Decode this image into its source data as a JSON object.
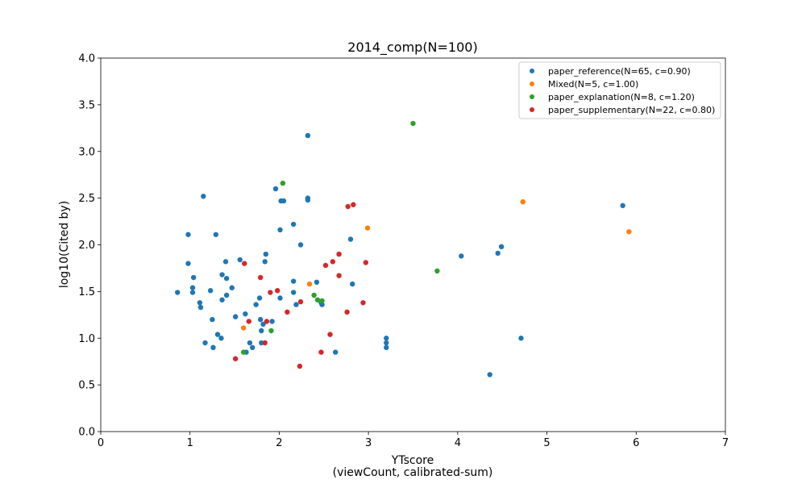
{
  "chart_data": {
    "type": "scatter",
    "title": "2014_comp(N=100)",
    "xlabel_line1": "YTscore",
    "xlabel_line2": "(viewCount, calibrated-sum)",
    "ylabel": "log10(Cited by)",
    "xlim": [
      0,
      7
    ],
    "ylim": [
      0,
      4
    ],
    "xticks": [
      0,
      1,
      2,
      3,
      4,
      5,
      6,
      7
    ],
    "yticks": [
      0.0,
      0.5,
      1.0,
      1.5,
      2.0,
      2.5,
      3.0,
      3.5,
      4.0
    ],
    "legend_position": "upper right",
    "series": [
      {
        "name": "paper_reference(N=65, c=0.90)",
        "color": "#1f77b4",
        "points": [
          [
            0.86,
            1.49
          ],
          [
            0.98,
            2.11
          ],
          [
            0.98,
            1.8
          ],
          [
            1.03,
            1.54
          ],
          [
            1.03,
            1.49
          ],
          [
            1.04,
            1.65
          ],
          [
            1.11,
            1.38
          ],
          [
            1.12,
            1.33
          ],
          [
            1.15,
            2.52
          ],
          [
            1.17,
            0.95
          ],
          [
            1.23,
            1.51
          ],
          [
            1.25,
            1.2
          ],
          [
            1.26,
            0.9
          ],
          [
            1.29,
            2.11
          ],
          [
            1.31,
            1.04
          ],
          [
            1.35,
            1.0
          ],
          [
            1.36,
            1.68
          ],
          [
            1.36,
            1.41
          ],
          [
            1.4,
            1.82
          ],
          [
            1.41,
            1.64
          ],
          [
            1.41,
            1.46
          ],
          [
            1.47,
            1.54
          ],
          [
            1.51,
            1.23
          ],
          [
            1.56,
            1.84
          ],
          [
            1.62,
            1.26
          ],
          [
            1.63,
            0.85
          ],
          [
            1.67,
            0.95
          ],
          [
            1.7,
            0.9
          ],
          [
            1.74,
            1.36
          ],
          [
            1.78,
            1.43
          ],
          [
            1.79,
            1.2
          ],
          [
            1.8,
            1.08
          ],
          [
            1.8,
            0.95
          ],
          [
            1.82,
            1.15
          ],
          [
            1.84,
            1.82
          ],
          [
            1.85,
            1.9
          ],
          [
            1.92,
            1.18
          ],
          [
            1.96,
            2.6
          ],
          [
            2.01,
            2.16
          ],
          [
            2.02,
            2.47
          ],
          [
            2.05,
            2.47
          ],
          [
            2.01,
            1.43
          ],
          [
            2.16,
            2.22
          ],
          [
            2.16,
            1.61
          ],
          [
            2.16,
            1.49
          ],
          [
            2.19,
            1.36
          ],
          [
            2.24,
            2.0
          ],
          [
            2.32,
            3.17
          ],
          [
            2.32,
            2.5
          ],
          [
            2.32,
            2.48
          ],
          [
            2.42,
            1.6
          ],
          [
            2.48,
            1.36
          ],
          [
            2.63,
            0.85
          ],
          [
            2.8,
            2.06
          ],
          [
            2.82,
            1.58
          ],
          [
            3.2,
            1.0
          ],
          [
            3.2,
            0.95
          ],
          [
            3.2,
            0.9
          ],
          [
            4.04,
            1.88
          ],
          [
            4.36,
            0.61
          ],
          [
            4.45,
            1.91
          ],
          [
            4.49,
            1.98
          ],
          [
            4.71,
            1.0
          ],
          [
            5.85,
            2.42
          ],
          [
            2.47,
            1.38
          ]
        ]
      },
      {
        "name": "Mixed(N=5, c=1.00)",
        "color": "#ff7f0e",
        "points": [
          [
            1.6,
            1.11
          ],
          [
            2.34,
            1.58
          ],
          [
            2.99,
            2.18
          ],
          [
            4.73,
            2.46
          ],
          [
            5.92,
            2.14
          ]
        ]
      },
      {
        "name": "paper_explanation(N=8, c=1.20)",
        "color": "#2ca02c",
        "points": [
          [
            1.6,
            0.85
          ],
          [
            1.91,
            1.08
          ],
          [
            2.04,
            2.66
          ],
          [
            2.39,
            1.46
          ],
          [
            2.43,
            1.41
          ],
          [
            2.48,
            1.4
          ],
          [
            3.5,
            3.3
          ],
          [
            3.77,
            1.72
          ]
        ]
      },
      {
        "name": "paper_supplementary(N=22, c=0.80)",
        "color": "#d62728",
        "points": [
          [
            1.51,
            0.78
          ],
          [
            1.61,
            1.8
          ],
          [
            1.66,
            1.18
          ],
          [
            1.79,
            1.65
          ],
          [
            1.84,
            0.95
          ],
          [
            1.86,
            1.18
          ],
          [
            1.9,
            1.49
          ],
          [
            1.98,
            1.51
          ],
          [
            2.09,
            1.28
          ],
          [
            2.23,
            0.7
          ],
          [
            2.24,
            1.39
          ],
          [
            2.47,
            0.85
          ],
          [
            2.52,
            1.78
          ],
          [
            2.57,
            1.04
          ],
          [
            2.6,
            1.82
          ],
          [
            2.67,
            1.9
          ],
          [
            2.67,
            1.67
          ],
          [
            2.76,
            1.28
          ],
          [
            2.77,
            2.41
          ],
          [
            2.83,
            2.43
          ],
          [
            2.94,
            1.38
          ],
          [
            2.97,
            1.81
          ]
        ]
      }
    ]
  }
}
